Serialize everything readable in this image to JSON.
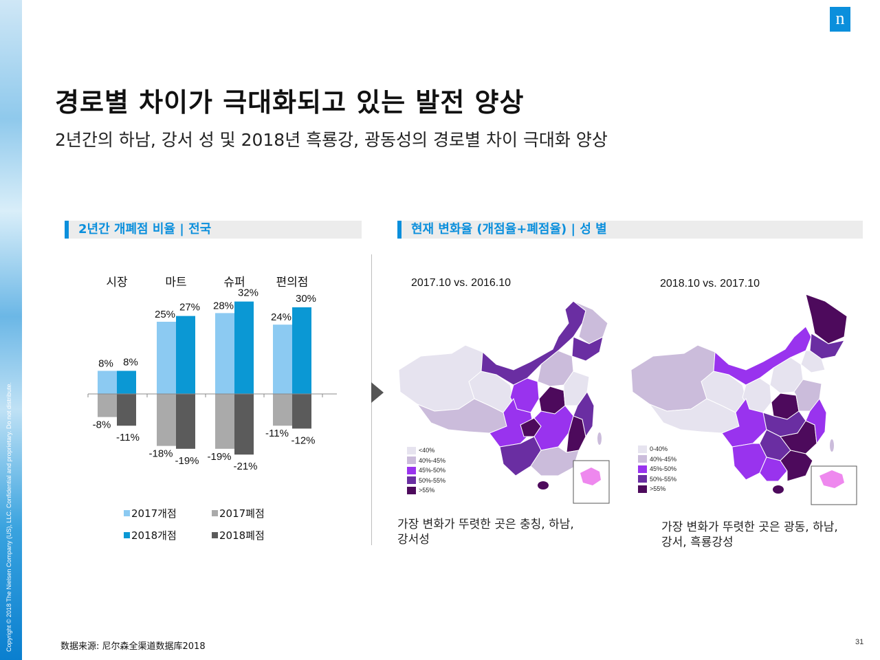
{
  "header": {
    "title": "경로별 차이가 극대화되고 있는 발전 양상",
    "subtitle": "2년간의 하남, 강서 성 및 2018년 흑룡강, 광동성의 경로별 차이 극대화 양상",
    "logo": "n"
  },
  "sections": {
    "left_heading": "2년간 개폐점 비율 | 전국",
    "right_heading": "현재 변화율 (개점율+폐점율) | 성 별"
  },
  "colors": {
    "open2017": "#8ccaf2",
    "open2018": "#0b98d4",
    "close2017": "#aaaaaa",
    "close2018": "#5b5b5b",
    "accent": "#0b8fdc",
    "map_levels": [
      "#e6e3ef",
      "#cbbcdb",
      "#9933ee",
      "#6a2ea2",
      "#4d0a5c"
    ]
  },
  "chart_data": {
    "type": "bar",
    "categories": [
      "시장",
      "마트",
      "슈퍼",
      "편의점"
    ],
    "series": [
      {
        "name": "2017개점",
        "values": [
          8,
          25,
          28,
          24
        ],
        "labels": [
          "8%",
          "25%",
          "28%",
          "24%"
        ]
      },
      {
        "name": "2018개점",
        "values": [
          8,
          27,
          32,
          30
        ],
        "labels": [
          "8%",
          "27%",
          "32%",
          "30%"
        ]
      },
      {
        "name": "2017폐점",
        "values": [
          -8,
          -18,
          -19,
          -11
        ],
        "labels": [
          "-8%",
          "-18%",
          "-19%",
          "-11%"
        ]
      },
      {
        "name": "2018폐점",
        "values": [
          -11,
          -19,
          -21,
          -12
        ],
        "labels": [
          "-11%",
          "-19%",
          "-21%",
          "-12%"
        ]
      }
    ],
    "ylim": [
      -25,
      35
    ],
    "legend_position": "bottom"
  },
  "maps": [
    {
      "date": "2017.10 vs. 2016.10",
      "legend": [
        "<40%",
        "40%-45%",
        "45%-50%",
        "50%-55%",
        ">55%"
      ],
      "caption_line1": "가장 변화가 뚜렷한 곳은 충칭, 하남,",
      "caption_line2": "강서성"
    },
    {
      "date": "2018.10 vs. 2017.10",
      "legend": [
        "0-40%",
        "40%-45%",
        "45%-50%",
        "50%-55%",
        ">55%"
      ],
      "caption_line1": "가장 변화가 뚜렷한 곳은 광동, 하남,",
      "caption_line2": "강서, 흑룡강성"
    }
  ],
  "footer": {
    "source": "数据来源:  尼尔森全渠道数据库2018",
    "page": "31",
    "copyright": "Copyright © 2018 The Nielsen Company (US), LLC. Confidential and proprietary. Do not distribute."
  }
}
